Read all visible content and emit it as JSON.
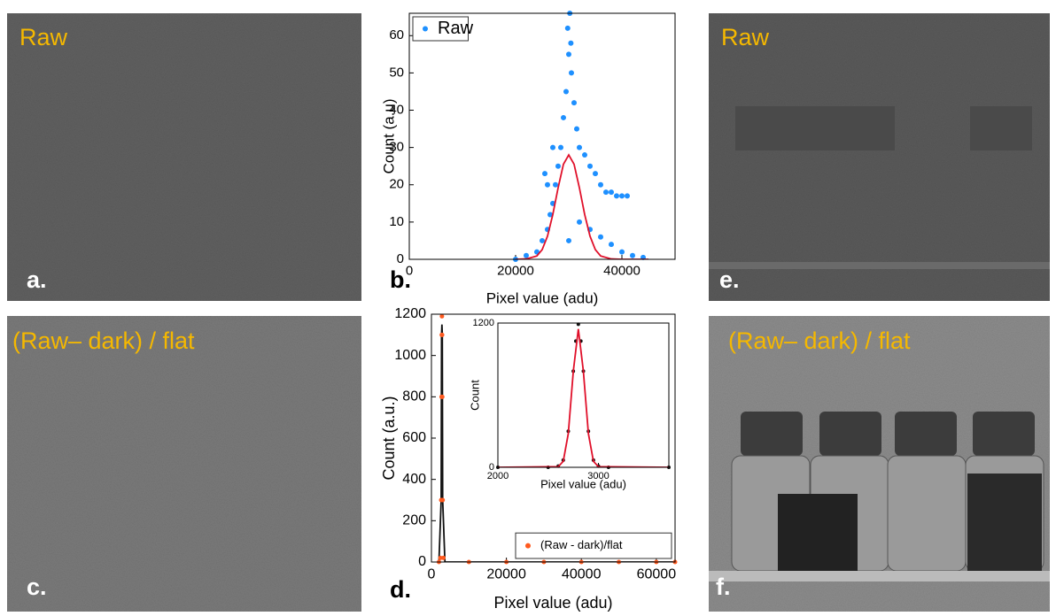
{
  "panels": [
    {
      "title": "Raw",
      "label": "a."
    },
    {
      "label": "b."
    },
    {
      "title": "(Raw– dark) / flat",
      "label": "c."
    },
    {
      "label": "d."
    },
    {
      "title": "Raw",
      "label": "e."
    },
    {
      "title": "(Raw– dark) / flat",
      "label": "f."
    }
  ],
  "chart_data": [
    {
      "type": "scatter",
      "x_label": "Pixel value (adu)",
      "y_label": "Count (a.u)",
      "xlim": [
        0,
        50000
      ],
      "xticks": [
        0,
        20000,
        40000
      ],
      "ylim": [
        0,
        66
      ],
      "yticks": [
        0,
        10,
        20,
        30,
        40,
        50,
        60
      ],
      "legend": "upper left",
      "series": [
        {
          "name": "Raw",
          "color": "#1e90ff",
          "mode": "markers",
          "x": [
            20000,
            22000,
            24000,
            25000,
            25500,
            26000,
            26000,
            26500,
            27000,
            27000,
            27500,
            28000,
            28500,
            29000,
            29500,
            30000,
            30200,
            30500,
            31000,
            31500,
            32000,
            33000,
            34000,
            35000,
            36000,
            37000,
            38000,
            39000,
            40000,
            41000,
            30000,
            32000,
            34000,
            36000,
            38000,
            40000,
            42000,
            44000,
            29800,
            30400
          ],
          "values": [
            0,
            1,
            2,
            5,
            23,
            8,
            20,
            12,
            15,
            30,
            20,
            25,
            30,
            38,
            45,
            55,
            66,
            50,
            42,
            35,
            30,
            28,
            25,
            23,
            20,
            18,
            18,
            17,
            17,
            17,
            5,
            10,
            8,
            6,
            4,
            2,
            1,
            0.5,
            62,
            58
          ]
        },
        {
          "color": "#e0102a",
          "mode": "line",
          "x": [
            20000,
            22000,
            24000,
            25000,
            26000,
            27000,
            28000,
            29000,
            30000,
            31000,
            32000,
            33000,
            34000,
            35000,
            36000,
            38000,
            40000,
            45000
          ],
          "values": [
            0,
            0.1,
            0.9,
            2.6,
            6.2,
            12,
            19.2,
            25.5,
            28,
            25.5,
            19.2,
            12,
            6.2,
            2.6,
            0.9,
            0.1,
            0,
            0
          ]
        }
      ]
    },
    {
      "type": "scatter",
      "x_label": "Pixel value (adu)",
      "y_label": "Count (a.u.)",
      "xlim": [
        0,
        65000
      ],
      "xticks": [
        0,
        20000,
        40000,
        60000
      ],
      "ylim": [
        0,
        1200
      ],
      "yticks": [
        0,
        200,
        400,
        600,
        800,
        1000,
        1200
      ],
      "legend": "lower right",
      "series": [
        {
          "color": "#111111",
          "mode": "line",
          "x": [
            2000,
            2600,
            2700,
            2800,
            2900,
            3000,
            3600,
            65000
          ],
          "values": [
            0,
            300,
            1100,
            1150,
            1100,
            300,
            0,
            0
          ]
        },
        {
          "name": "(Raw - dark)/flat",
          "color": "#ff5a1f",
          "mode": "markers",
          "x": [
            2000,
            2400,
            2600,
            2700,
            2750,
            2800,
            2850,
            2900,
            3000,
            3200,
            10000,
            20000,
            30000,
            40000,
            50000,
            60000,
            65000
          ],
          "values": [
            0,
            20,
            300,
            800,
            1100,
            1190,
            1100,
            800,
            300,
            20,
            0,
            0,
            0,
            0,
            0,
            0,
            0
          ]
        }
      ]
    },
    {
      "type": "scatter",
      "x_label": "Pixel value (adu)",
      "y_label": "Count",
      "xlim": [
        2000,
        3700
      ],
      "xticks": [
        2000,
        3000
      ],
      "ylim": [
        0,
        1200
      ],
      "yticks": [
        0,
        1200
      ],
      "series": [
        {
          "color": "#111111",
          "mode": "markers",
          "x": [
            2000,
            2500,
            2600,
            2650,
            2700,
            2750,
            2775,
            2800,
            2825,
            2850,
            2900,
            2950,
            3000,
            3100,
            3700
          ],
          "values": [
            0,
            0,
            10,
            60,
            300,
            800,
            1050,
            1190,
            1050,
            800,
            300,
            60,
            10,
            0,
            0
          ]
        },
        {
          "color": "#e0102a",
          "mode": "line",
          "x": [
            2000,
            2600,
            2650,
            2700,
            2750,
            2800,
            2850,
            2900,
            2950,
            3000,
            3700
          ],
          "values": [
            0,
            5,
            50,
            280,
            800,
            1150,
            800,
            280,
            50,
            5,
            0
          ]
        }
      ]
    }
  ]
}
